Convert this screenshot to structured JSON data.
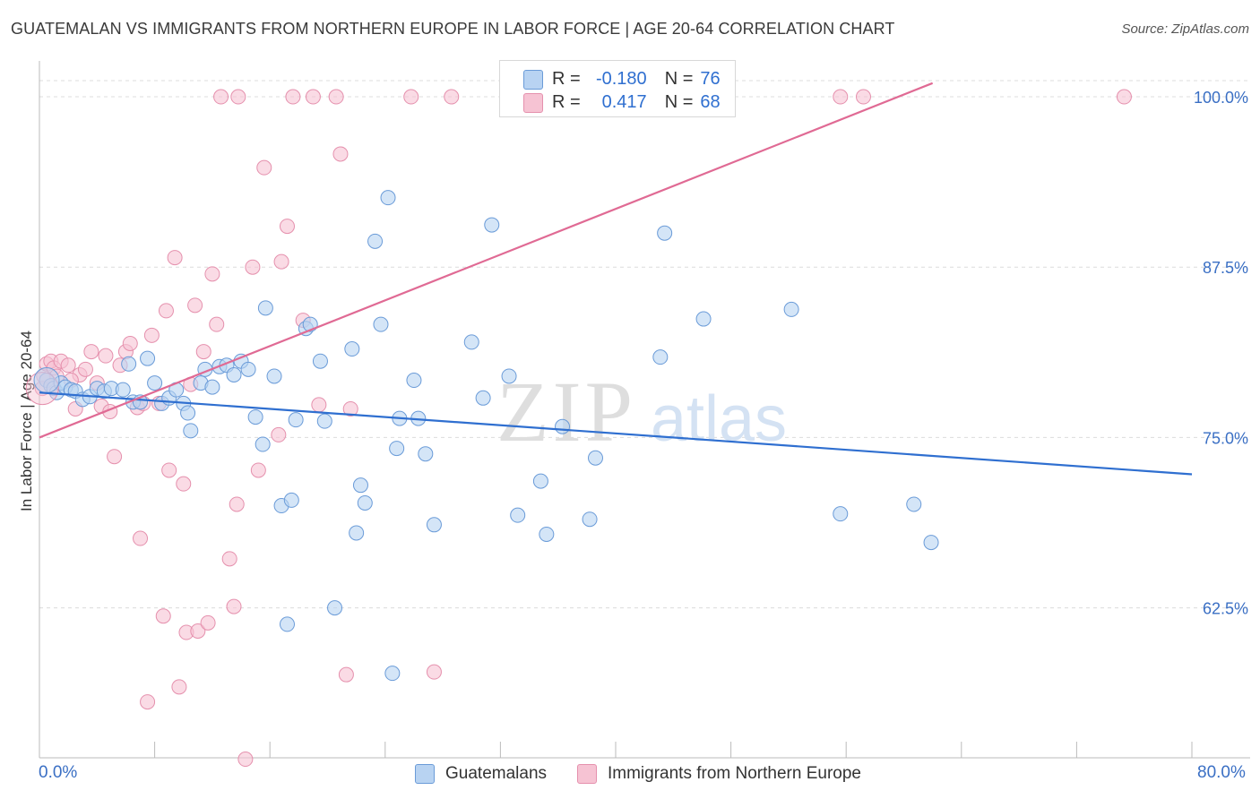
{
  "title": "GUATEMALAN VS IMMIGRANTS FROM NORTHERN EUROPE IN LABOR FORCE | AGE 20-64 CORRELATION CHART",
  "source": "Source: ZipAtlas.com",
  "watermark": {
    "zip": "ZIP",
    "atlas": "atlas"
  },
  "legend_top": {
    "rows": [
      {
        "r_label": "R =",
        "r_value": "-0.180",
        "n_label": "N =",
        "n_value": "76"
      },
      {
        "r_label": "R =",
        "r_value": "0.417",
        "n_label": "N =",
        "n_value": "68"
      }
    ]
  },
  "legend_bottom": {
    "items": [
      "Guatemalans",
      "Immigrants from Northern Europe"
    ]
  },
  "axes": {
    "ylabel": "In Labor Force | Age 20-64",
    "x_min_label": "0.0%",
    "x_max_label": "80.0%",
    "y_tick_labels": [
      "100.0%",
      "87.5%",
      "75.0%",
      "62.5%"
    ]
  },
  "colors": {
    "blue_fill": "#b8d3f2",
    "blue_stroke": "#6a9bd8",
    "blue_line": "#2f6fd0",
    "pink_fill": "#f6c3d3",
    "pink_stroke": "#e590ad",
    "pink_line": "#e06a94",
    "tick_text": "#3a6fc4",
    "grid": "#dcdcdc"
  },
  "chart_data": {
    "type": "scatter",
    "xlim": [
      0,
      80
    ],
    "ylim": [
      51.5,
      102.5
    ],
    "y_ticks": [
      100,
      87.5,
      75,
      62.5
    ],
    "grid": "horizontal dashed",
    "series": [
      {
        "name": "Guatemalans",
        "color": "#b8d3f2",
        "trend": {
          "x": [
            0,
            80
          ],
          "y": [
            78.3,
            72.3
          ]
        },
        "points": [
          [
            0.5,
            79.2
          ],
          [
            0.8,
            78.8
          ],
          [
            1.0,
            78.6
          ],
          [
            1.2,
            78.3
          ],
          [
            1.5,
            79.0
          ],
          [
            1.8,
            78.7
          ],
          [
            2.2,
            78.5
          ],
          [
            2.5,
            78.4
          ],
          [
            3.0,
            77.8
          ],
          [
            3.5,
            78.0
          ],
          [
            4.0,
            78.6
          ],
          [
            4.5,
            78.4
          ],
          [
            5.0,
            78.6
          ],
          [
            5.8,
            78.5
          ],
          [
            6.2,
            80.4
          ],
          [
            6.5,
            77.6
          ],
          [
            7.0,
            77.6
          ],
          [
            7.5,
            80.8
          ],
          [
            8.0,
            79.0
          ],
          [
            8.5,
            77.5
          ],
          [
            9.0,
            77.9
          ],
          [
            9.5,
            78.5
          ],
          [
            10.0,
            77.5
          ],
          [
            10.3,
            76.8
          ],
          [
            10.5,
            75.5
          ],
          [
            11.2,
            79.0
          ],
          [
            11.5,
            80.0
          ],
          [
            12.0,
            78.7
          ],
          [
            12.5,
            80.2
          ],
          [
            13.0,
            80.3
          ],
          [
            13.5,
            79.6
          ],
          [
            14.0,
            80.6
          ],
          [
            14.5,
            80.0
          ],
          [
            15.0,
            76.5
          ],
          [
            15.5,
            74.5
          ],
          [
            15.7,
            84.5
          ],
          [
            16.3,
            79.5
          ],
          [
            16.8,
            70.0
          ],
          [
            17.2,
            61.3
          ],
          [
            17.5,
            70.4
          ],
          [
            17.8,
            76.3
          ],
          [
            18.5,
            83.0
          ],
          [
            18.8,
            83.3
          ],
          [
            19.5,
            80.6
          ],
          [
            19.8,
            76.2
          ],
          [
            20.5,
            62.5
          ],
          [
            21.7,
            81.5
          ],
          [
            22.0,
            68.0
          ],
          [
            22.3,
            71.5
          ],
          [
            22.6,
            70.2
          ],
          [
            23.3,
            89.4
          ],
          [
            23.7,
            83.3
          ],
          [
            24.2,
            92.6
          ],
          [
            24.8,
            74.2
          ],
          [
            25.0,
            76.4
          ],
          [
            26.0,
            79.2
          ],
          [
            26.3,
            76.4
          ],
          [
            26.8,
            73.8
          ],
          [
            27.4,
            68.6
          ],
          [
            30.0,
            82.0
          ],
          [
            30.8,
            77.9
          ],
          [
            31.4,
            90.6
          ],
          [
            32.6,
            79.5
          ],
          [
            33.2,
            69.3
          ],
          [
            34.8,
            71.8
          ],
          [
            35.2,
            67.9
          ],
          [
            36.3,
            75.8
          ],
          [
            38.2,
            69.0
          ],
          [
            38.6,
            73.5
          ],
          [
            43.1,
            80.9
          ],
          [
            43.4,
            90.0
          ],
          [
            46.1,
            83.7
          ],
          [
            52.2,
            84.4
          ],
          [
            55.6,
            69.4
          ],
          [
            60.7,
            70.1
          ],
          [
            61.9,
            67.3
          ],
          [
            24.5,
            57.7
          ]
        ]
      },
      {
        "name": "Immigrants from Northern Europe",
        "color": "#f6c3d3",
        "trend": {
          "x": [
            0,
            62
          ],
          "y": [
            75.0,
            101.0
          ]
        },
        "points": [
          [
            0.3,
            79.5
          ],
          [
            0.5,
            80.4
          ],
          [
            0.8,
            80.6
          ],
          [
            1.0,
            80.1
          ],
          [
            1.2,
            79.5
          ],
          [
            1.5,
            80.6
          ],
          [
            2.0,
            80.3
          ],
          [
            2.5,
            77.1
          ],
          [
            2.8,
            79.6
          ],
          [
            3.2,
            80.0
          ],
          [
            3.6,
            81.3
          ],
          [
            4.0,
            79.0
          ],
          [
            4.3,
            77.3
          ],
          [
            4.6,
            81.0
          ],
          [
            4.9,
            76.9
          ],
          [
            5.2,
            73.6
          ],
          [
            5.6,
            80.3
          ],
          [
            6.0,
            81.3
          ],
          [
            6.3,
            81.9
          ],
          [
            6.8,
            77.2
          ],
          [
            7.0,
            67.6
          ],
          [
            7.2,
            77.5
          ],
          [
            7.5,
            55.6
          ],
          [
            7.8,
            82.5
          ],
          [
            8.3,
            77.5
          ],
          [
            8.6,
            61.9
          ],
          [
            8.8,
            84.3
          ],
          [
            9.0,
            72.6
          ],
          [
            9.4,
            88.2
          ],
          [
            9.7,
            56.7
          ],
          [
            10.0,
            71.6
          ],
          [
            10.2,
            60.7
          ],
          [
            10.5,
            78.9
          ],
          [
            10.8,
            84.7
          ],
          [
            11.0,
            60.8
          ],
          [
            11.4,
            81.3
          ],
          [
            11.7,
            61.4
          ],
          [
            12.0,
            87.0
          ],
          [
            12.3,
            83.3
          ],
          [
            12.6,
            100.0
          ],
          [
            13.2,
            66.1
          ],
          [
            13.5,
            62.6
          ],
          [
            13.7,
            70.1
          ],
          [
            13.8,
            100.0
          ],
          [
            14.3,
            51.4
          ],
          [
            14.8,
            87.5
          ],
          [
            15.2,
            72.6
          ],
          [
            15.6,
            94.8
          ],
          [
            16.6,
            75.2
          ],
          [
            16.8,
            87.9
          ],
          [
            17.2,
            90.5
          ],
          [
            17.6,
            100.0
          ],
          [
            18.3,
            83.6
          ],
          [
            19.0,
            100.0
          ],
          [
            19.4,
            77.4
          ],
          [
            20.6,
            100.0
          ],
          [
            20.9,
            95.8
          ],
          [
            21.3,
            57.6
          ],
          [
            21.6,
            77.1
          ],
          [
            25.8,
            100.0
          ],
          [
            27.4,
            57.8
          ],
          [
            28.6,
            100.0
          ],
          [
            33.2,
            100.0
          ],
          [
            55.6,
            100.0
          ],
          [
            57.2,
            100.0
          ],
          [
            75.3,
            100.0
          ],
          [
            0.2,
            78.6
          ],
          [
            2.2,
            79.2
          ]
        ]
      }
    ]
  }
}
